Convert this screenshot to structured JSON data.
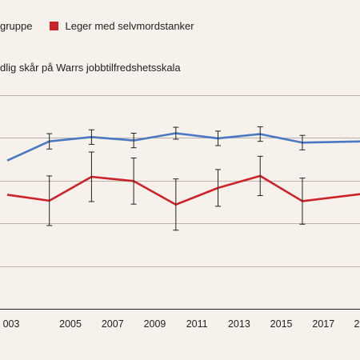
{
  "chart_data": {
    "type": "line",
    "ylabel": "dlig skår på Warrs jobbtilfredshetsskala",
    "x": [
      2002,
      2004,
      2006,
      2008,
      2010,
      2012,
      2014,
      2016,
      2019
    ],
    "x_tick_labels": [
      "003",
      "2005",
      "2007",
      "2009",
      "2011",
      "2013",
      "2015",
      "2017",
      "2"
    ],
    "series": [
      {
        "name": "gruppe",
        "color": "#4a78c2",
        "values": [
          4.47,
          4.92,
          5.02,
          4.94,
          5.11,
          4.99,
          5.09,
          4.89,
          4.92
        ],
        "error": [
          0,
          0.18,
          0.17,
          0.17,
          0.14,
          0.17,
          0.17,
          0.17,
          0
        ]
      },
      {
        "name": "Leger med selvmordstanker",
        "color": "#cc2229",
        "values": [
          3.67,
          3.53,
          4.09,
          3.99,
          3.44,
          3.83,
          4.11,
          3.52,
          3.7
        ],
        "error": [
          0,
          0.58,
          0.58,
          0.54,
          0.6,
          0.43,
          0.46,
          0.54,
          0
        ]
      }
    ],
    "xlim": [
      2002,
      2019
    ],
    "ylim": [
      1,
      7
    ],
    "yticks": [
      2,
      3,
      4,
      5,
      6
    ],
    "grid": true,
    "legend_position": "top-left"
  }
}
